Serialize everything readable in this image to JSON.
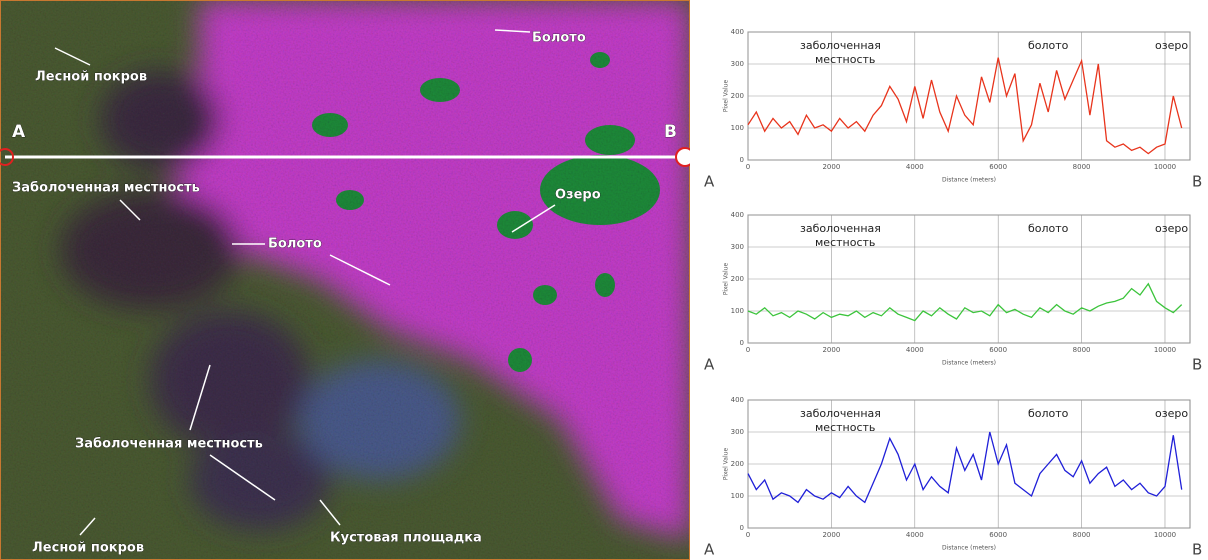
{
  "image": {
    "labels": [
      "Лесной покров",
      "Болото",
      "A",
      "B",
      "Заболоченная местность",
      "Озеро",
      "Болото",
      "Заболоченная местность",
      "Лесной покров",
      "Кустовая площадка"
    ]
  },
  "chart_data": [
    {
      "type": "line",
      "x_label": "Distance (meters)",
      "y_label": "Pixel Value",
      "start_label": "A",
      "end_label": "B",
      "annotations": [
        "заболоченная",
        "местность",
        "болото",
        "озеро"
      ],
      "xlim": [
        0,
        10600
      ],
      "ylim": [
        0,
        400
      ],
      "xticks": [
        0,
        2000,
        4000,
        6000,
        8000,
        10000
      ],
      "yticks": [
        0,
        100,
        200,
        300,
        400
      ],
      "grid": true,
      "x": [
        0,
        200,
        400,
        600,
        800,
        1000,
        1200,
        1400,
        1600,
        1800,
        2000,
        2200,
        2400,
        2600,
        2800,
        3000,
        3200,
        3400,
        3600,
        3800,
        4000,
        4200,
        4400,
        4600,
        4800,
        5000,
        5200,
        5400,
        5600,
        5800,
        6000,
        6200,
        6400,
        6600,
        6800,
        7000,
        7200,
        7400,
        7600,
        7800,
        8000,
        8200,
        8400,
        8600,
        8800,
        9000,
        9200,
        9400,
        9600,
        9800,
        10000,
        10200,
        10400
      ],
      "series": [
        {
          "color": "#e8341c",
          "values": [
            110,
            150,
            90,
            130,
            100,
            120,
            80,
            140,
            100,
            110,
            90,
            130,
            100,
            120,
            90,
            140,
            170,
            230,
            190,
            120,
            230,
            130,
            250,
            150,
            90,
            200,
            140,
            110,
            260,
            180,
            320,
            200,
            270,
            60,
            110,
            240,
            150,
            280,
            190,
            250,
            310,
            140,
            300,
            60,
            40,
            50,
            30,
            40,
            20,
            40,
            50,
            200,
            100
          ]
        }
      ]
    },
    {
      "type": "line",
      "x_label": "Distance (meters)",
      "y_label": "Pixel Value",
      "start_label": "A",
      "end_label": "B",
      "annotations": [
        "заболоченная",
        "местность",
        "болото",
        "озеро"
      ],
      "xlim": [
        0,
        10600
      ],
      "ylim": [
        0,
        400
      ],
      "xticks": [
        0,
        2000,
        4000,
        6000,
        8000,
        10000
      ],
      "yticks": [
        0,
        100,
        200,
        300,
        400
      ],
      "grid": true,
      "x": [
        0,
        200,
        400,
        600,
        800,
        1000,
        1200,
        1400,
        1600,
        1800,
        2000,
        2200,
        2400,
        2600,
        2800,
        3000,
        3200,
        3400,
        3600,
        3800,
        4000,
        4200,
        4400,
        4600,
        4800,
        5000,
        5200,
        5400,
        5600,
        5800,
        6000,
        6200,
        6400,
        6600,
        6800,
        7000,
        7200,
        7400,
        7600,
        7800,
        8000,
        8200,
        8400,
        8600,
        8800,
        9000,
        9200,
        9400,
        9600,
        9800,
        10000,
        10200,
        10400
      ],
      "series": [
        {
          "color": "#3cc43c",
          "values": [
            100,
            90,
            110,
            85,
            95,
            80,
            100,
            90,
            75,
            95,
            80,
            90,
            85,
            100,
            80,
            95,
            85,
            110,
            90,
            80,
            70,
            100,
            85,
            110,
            90,
            75,
            110,
            95,
            100,
            85,
            120,
            95,
            105,
            90,
            80,
            110,
            95,
            120,
            100,
            90,
            110,
            100,
            115,
            125,
            130,
            140,
            170,
            150,
            185,
            130,
            110,
            95,
            120
          ]
        }
      ]
    },
    {
      "type": "line",
      "x_label": "Distance (meters)",
      "y_label": "Pixel Value",
      "start_label": "A",
      "end_label": "B",
      "annotations": [
        "заболоченная",
        "местность",
        "болото",
        "озеро"
      ],
      "xlim": [
        0,
        10600
      ],
      "ylim": [
        0,
        400
      ],
      "xticks": [
        0,
        2000,
        4000,
        6000,
        8000,
        10000
      ],
      "yticks": [
        0,
        100,
        200,
        300,
        400
      ],
      "grid": true,
      "x": [
        0,
        200,
        400,
        600,
        800,
        1000,
        1200,
        1400,
        1600,
        1800,
        2000,
        2200,
        2400,
        2600,
        2800,
        3000,
        3200,
        3400,
        3600,
        3800,
        4000,
        4200,
        4400,
        4600,
        4800,
        5000,
        5200,
        5400,
        5600,
        5800,
        6000,
        6200,
        6400,
        6600,
        6800,
        7000,
        7200,
        7400,
        7600,
        7800,
        8000,
        8200,
        8400,
        8600,
        8800,
        9000,
        9200,
        9400,
        9600,
        9800,
        10000,
        10200,
        10400
      ],
      "series": [
        {
          "color": "#2020d8",
          "values": [
            170,
            120,
            150,
            90,
            110,
            100,
            80,
            120,
            100,
            90,
            110,
            95,
            130,
            100,
            80,
            140,
            200,
            280,
            230,
            150,
            200,
            120,
            160,
            130,
            110,
            250,
            180,
            230,
            150,
            300,
            200,
            260,
            140,
            120,
            100,
            170,
            200,
            230,
            180,
            160,
            210,
            140,
            170,
            190,
            130,
            150,
            120,
            140,
            110,
            100,
            130,
            290,
            120
          ]
        }
      ]
    }
  ]
}
